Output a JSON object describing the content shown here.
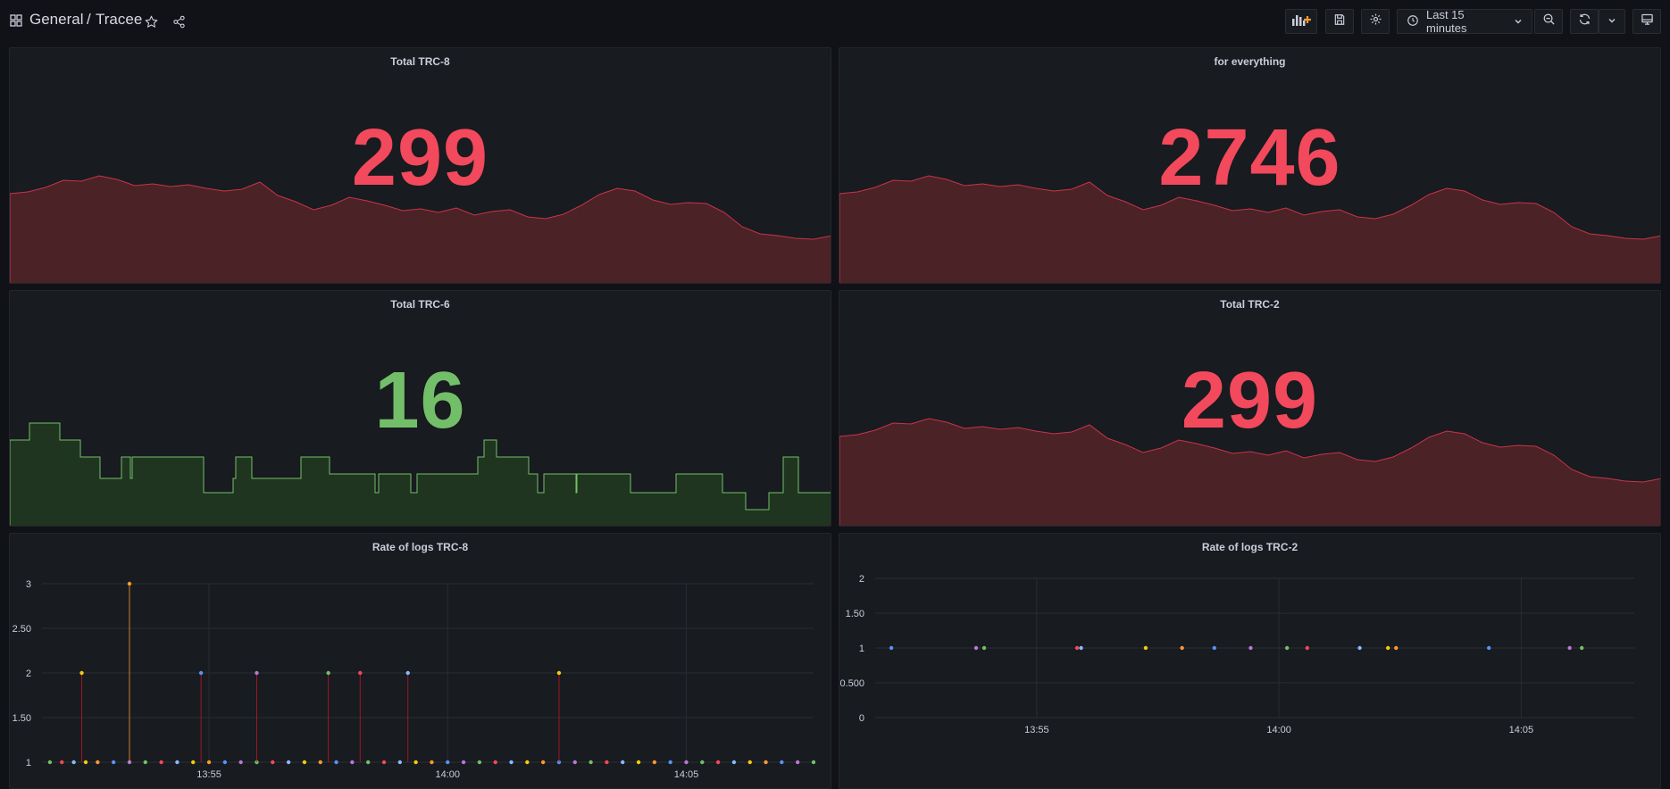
{
  "header": {
    "folder": "General",
    "separator": "/",
    "dashboard": "Tracee",
    "time_range": "Last 15 minutes"
  },
  "icons": {
    "apps": "apps-grid-icon",
    "star": "star-icon",
    "share": "share-icon",
    "add_panel": "add-panel-icon",
    "save": "save-icon",
    "settings": "gear-icon",
    "clock": "clock-icon",
    "zoom_out": "zoom-out-icon",
    "refresh": "refresh-icon",
    "chevron": "chevron-down-icon",
    "tv": "tv-mode-icon"
  },
  "colors": {
    "red": "#f2495c",
    "green": "#73bf69",
    "bg": "#111217",
    "panel": "#181b1f"
  },
  "panels": {
    "trc8": {
      "title": "Total TRC-8",
      "value": "299"
    },
    "everything": {
      "title": "for everything",
      "value": "2746"
    },
    "trc6": {
      "title": "Total TRC-6",
      "value": "16"
    },
    "trc2": {
      "title": "Total TRC-2",
      "value": "299"
    },
    "rate8": {
      "title": "Rate of logs TRC-8"
    },
    "rate2": {
      "title": "Rate of logs TRC-2"
    }
  },
  "chart_data": [
    {
      "type": "scatter",
      "title": "Rate of logs TRC-8",
      "y_ticks": [
        "1",
        "1.50",
        "2",
        "2.50",
        "3"
      ],
      "x_ticks": [
        "13:55",
        "14:00",
        "14:05"
      ],
      "ylim": [
        1,
        3
      ],
      "grid": true,
      "series": [
        {
          "x": [
            "13:51:40",
            "13:51:55",
            "13:52:10",
            "13:52:25",
            "13:52:40",
            "13:53:00",
            "13:53:20",
            "13:53:40",
            "13:54:00",
            "13:54:20",
            "13:54:40",
            "13:55:00",
            "13:55:20",
            "13:55:40",
            "13:56:00",
            "13:56:20",
            "13:56:40",
            "13:57:00",
            "13:57:20",
            "13:57:40",
            "13:58:00",
            "13:58:20",
            "13:58:40",
            "13:59:00",
            "13:59:20",
            "13:59:40",
            "14:00:00",
            "14:00:20",
            "14:00:40",
            "14:01:00",
            "14:01:20",
            "14:01:40",
            "14:02:00",
            "14:02:20",
            "14:02:40",
            "14:03:00",
            "14:03:20",
            "14:03:40",
            "14:04:00",
            "14:04:20",
            "14:04:40",
            "14:05:00",
            "14:05:20",
            "14:05:40",
            "14:06:00",
            "14:06:20",
            "14:06:40",
            "14:07:00",
            "14:07:20",
            "14:07:40"
          ],
          "y": [
            1,
            1,
            1,
            1,
            1,
            1,
            1,
            1,
            1,
            1,
            1,
            1,
            1,
            1,
            1,
            1,
            1,
            1,
            1,
            1,
            1,
            1,
            1,
            1,
            1,
            1,
            1,
            1,
            1,
            1,
            1,
            1,
            1,
            1,
            1,
            1,
            1,
            1,
            1,
            1,
            1,
            1,
            1,
            1,
            1,
            1,
            1,
            1,
            1,
            1
          ]
        },
        {
          "x": [
            "13:52:20",
            "13:53:20",
            "13:54:50",
            "13:56:00",
            "13:57:30",
            "13:58:10",
            "13:59:10",
            "14:02:20"
          ],
          "y": [
            2,
            3,
            2,
            2,
            2,
            2,
            2,
            2
          ]
        }
      ]
    },
    {
      "type": "scatter",
      "title": "Rate of logs TRC-2",
      "y_ticks": [
        "0",
        "0.500",
        "1",
        "1.50",
        "2"
      ],
      "x_ticks": [
        "13:55",
        "14:00",
        "14:05"
      ],
      "ylim": [
        0,
        2
      ],
      "grid": true,
      "series": [
        {
          "x": [
            "13:52:00",
            "13:53:45",
            "13:53:55",
            "13:55:50",
            "13:55:55",
            "13:57:15",
            "13:58:00",
            "13:58:40",
            "13:59:25",
            "14:00:10",
            "14:00:35",
            "14:01:40",
            "14:02:15",
            "14:02:25",
            "14:04:20",
            "14:06:00",
            "14:06:15"
          ],
          "y": [
            1,
            1,
            1,
            1,
            1,
            1,
            1,
            1,
            1,
            1,
            1,
            1,
            1,
            1,
            1,
            1,
            1
          ]
        }
      ]
    }
  ]
}
